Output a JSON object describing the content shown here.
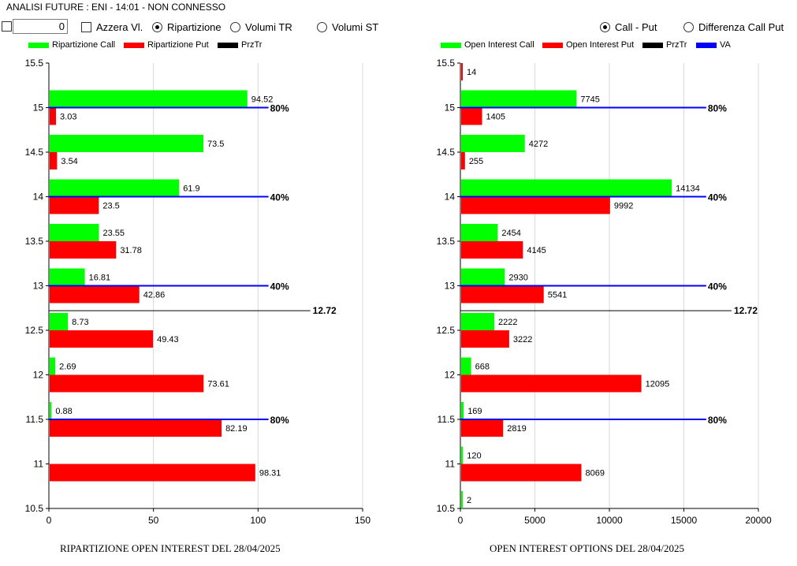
{
  "window": {
    "title": "ANALISI FUTURE : ENI - 14:01 - NON CONNESSO"
  },
  "controls": {
    "number_value": "0",
    "azzera_label": "Azzera Vl.",
    "radios_left": [
      {
        "label": "Ripartizione",
        "selected": true
      },
      {
        "label": "Volumi TR",
        "selected": false
      },
      {
        "label": "Volumi ST",
        "selected": false
      }
    ],
    "radios_right": [
      {
        "label": "Call - Put",
        "selected": true
      },
      {
        "label": "Differenza Call Put",
        "selected": false
      }
    ]
  },
  "legend_left": [
    {
      "label": "Ripartizione Call",
      "color": "#00ff00"
    },
    {
      "label": "Ripartizione Put",
      "color": "#ff0000"
    },
    {
      "label": "PrzTr",
      "color": "#000000"
    }
  ],
  "legend_right": [
    {
      "label": "Open Interest Call",
      "color": "#00ff00"
    },
    {
      "label": "Open Interest Put",
      "color": "#ff0000"
    },
    {
      "label": "PrzTr",
      "color": "#000000"
    },
    {
      "label": "VA",
      "color": "#0000ff"
    }
  ],
  "chart_data": [
    {
      "type": "bar",
      "orientation": "horizontal",
      "title": "RIPARTIZIONE OPEN INTEREST DEL 28/04/2025",
      "y_ticks": [
        "15.5",
        "15",
        "14.5",
        "14",
        "13.5",
        "13",
        "12.5",
        "12",
        "11.5",
        "11",
        "10.5"
      ],
      "x_ticks": [
        "0",
        "50",
        "100",
        "150"
      ],
      "xlim": [
        0,
        150
      ],
      "ylim": [
        10.5,
        15.5
      ],
      "categories": [
        15,
        14.5,
        14,
        13.5,
        13,
        12.5,
        12,
        11.5,
        11
      ],
      "series": [
        {
          "name": "Ripartizione Call",
          "color": "#00ff00",
          "values": [
            94.52,
            73.5,
            61.9,
            23.55,
            16.81,
            8.73,
            2.69,
            0.88,
            null
          ],
          "labels": [
            "94.52",
            "73.5",
            "61.9",
            "23.55",
            "16.81",
            "8.73",
            "2.69",
            "0.88",
            ""
          ]
        },
        {
          "name": "Ripartizione Put",
          "color": "#ff0000",
          "values": [
            3.03,
            3.54,
            23.5,
            31.78,
            42.86,
            49.43,
            73.61,
            82.19,
            98.31
          ],
          "labels": [
            "3.03",
            "3.54",
            "23.5",
            "31.78",
            "42.86",
            "49.43",
            "73.61",
            "82.19",
            "98.31"
          ]
        }
      ],
      "va_lines": [
        {
          "y": 15,
          "x": 105,
          "label": "80%"
        },
        {
          "y": 14,
          "x": 105,
          "label": "40%"
        },
        {
          "y": 13,
          "x": 105,
          "label": "40%"
        },
        {
          "y": 11.5,
          "x": 105,
          "label": "80%"
        }
      ],
      "prztr": {
        "y": 12.72,
        "x": 125,
        "label": "12.72"
      },
      "grid": true
    },
    {
      "type": "bar",
      "orientation": "horizontal",
      "title": "OPEN INTEREST OPTIONS DEL 28/04/2025",
      "y_ticks": [
        "15.5",
        "15",
        "14.5",
        "14",
        "13.5",
        "13",
        "12.5",
        "12",
        "11.5",
        "11",
        "10.5"
      ],
      "x_ticks": [
        "0",
        "5000",
        "10000",
        "15000",
        "20000"
      ],
      "xlim": [
        0,
        20000
      ],
      "ylim": [
        10.5,
        15.5
      ],
      "categories": [
        15.5,
        15,
        14.5,
        14,
        13.5,
        13,
        12.5,
        12,
        11.5,
        11,
        10.5
      ],
      "series": [
        {
          "name": "Open Interest Call",
          "color": "#00ff00",
          "values": [
            null,
            7745,
            4272,
            14134,
            2454,
            2930,
            2222,
            668,
            169,
            120,
            2
          ],
          "labels": [
            "",
            "7745",
            "4272",
            "14134",
            "2454",
            "2930",
            "2222",
            "668",
            "169",
            "120",
            "2"
          ]
        },
        {
          "name": "Open Interest Put",
          "color": "#ff0000",
          "values": [
            14,
            1405,
            255,
            9992,
            4145,
            5541,
            3222,
            12095,
            2819,
            8069,
            null
          ],
          "labels": [
            "14",
            "1405",
            "255",
            "9992",
            "4145",
            "5541",
            "3222",
            "12095",
            "2819",
            "8069",
            ""
          ]
        }
      ],
      "va_lines": [
        {
          "y": 15,
          "x": 16500,
          "label": "80%"
        },
        {
          "y": 14,
          "x": 16500,
          "label": "40%"
        },
        {
          "y": 13,
          "x": 16500,
          "label": "40%"
        },
        {
          "y": 11.5,
          "x": 16500,
          "label": "80%"
        }
      ],
      "prztr": {
        "y": 12.72,
        "x": 18200,
        "label": "12.72"
      },
      "grid": true
    }
  ]
}
